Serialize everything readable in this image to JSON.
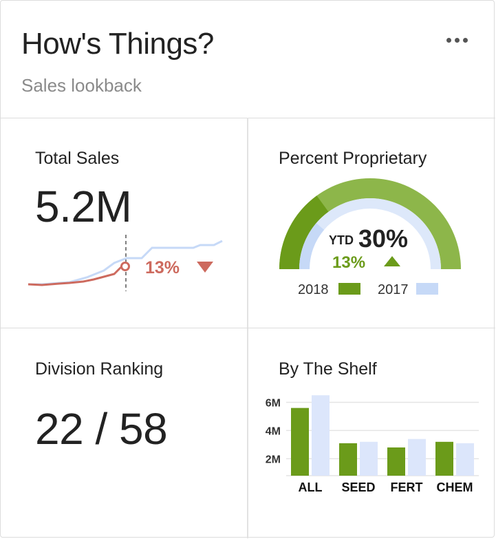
{
  "header": {
    "title": "How's Things?",
    "subtitle": "Sales lookback",
    "menu_icon": "more-horizontal-icon"
  },
  "total_sales": {
    "label": "Total Sales",
    "value": "5.2M",
    "change": "13%",
    "trend": "down",
    "colors": {
      "current": "#cd6a5e",
      "prior": "#c6d9f7"
    }
  },
  "percent_proprietary": {
    "label": "Percent Proprietary",
    "ytd_label": "YTD",
    "value": "30%",
    "value_fraction": 0.3,
    "change": "13%",
    "trend": "up",
    "legend": [
      {
        "label": "2018",
        "color": "#6b9b1a"
      },
      {
        "label": "2017",
        "color": "#c6d9f7"
      }
    ],
    "colors": {
      "outer": "#8db64a",
      "outer_fill": "#6b9b1a",
      "inner_bg": "#dde8fa",
      "inner_fill": "#c6d9f7"
    }
  },
  "division_ranking": {
    "label": "Division Ranking",
    "value": "22 / 58"
  },
  "by_the_shelf": {
    "label": "By The Shelf",
    "chart_data": {
      "type": "bar",
      "categories": [
        "ALL",
        "SEED",
        "FERT",
        "CHEM"
      ],
      "series": [
        {
          "values": [
            5.6,
            3.1,
            2.8,
            3.2
          ],
          "color": "#6b9b1a"
        },
        {
          "values": [
            6.5,
            3.2,
            3.4,
            3.1
          ],
          "color": "#dce6fb"
        }
      ],
      "ytick_labels": [
        "2M",
        "4M",
        "6M"
      ],
      "yticks": [
        2,
        4,
        6
      ],
      "ylim": [
        0.8,
        6.9
      ],
      "grid": true
    }
  }
}
